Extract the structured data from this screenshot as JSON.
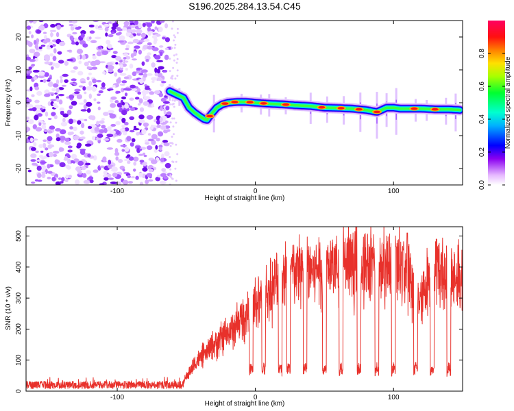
{
  "figure": {
    "title": "S196.2025.284.13.54.C45"
  },
  "chart_data": [
    {
      "type": "heatmap",
      "title": "S196.2025.284.13.54.C45",
      "xlabel": "Height of straight line (km)",
      "ylabel": "Frequency (Hz)",
      "xlim": [
        -166,
        150
      ],
      "ylim": [
        -25,
        25
      ],
      "xticks": [
        -100,
        0,
        100
      ],
      "yticks": [
        -20,
        -10,
        0,
        10,
        20
      ],
      "colorbar": {
        "label": "Normalized spectral amplitude",
        "range": [
          0,
          1
        ],
        "ticks": [
          0,
          0.2,
          0.4,
          0.6,
          0.8
        ],
        "tick_labels": [
          "0.0",
          "0.2",
          "0.4",
          "0.6",
          "0.8"
        ]
      },
      "noise_region_x": [
        -166,
        -62
      ],
      "signal_track": {
        "x": [
          -62,
          -57,
          -52,
          -48,
          -44,
          -40,
          -37,
          -35,
          -32,
          -28,
          -24,
          -20,
          -15,
          -10,
          -5,
          0,
          10,
          20,
          30,
          40,
          50,
          60,
          70,
          80,
          88,
          95,
          100,
          105,
          110,
          120,
          130,
          140,
          148
        ],
        "y": [
          3.5,
          2.5,
          1.5,
          -1.5,
          -3.0,
          -4.2,
          -5.0,
          -5.2,
          -3.5,
          -1.5,
          -0.5,
          0.0,
          0.2,
          0.3,
          0.2,
          0.0,
          -0.3,
          -0.5,
          -0.8,
          -1.0,
          -1.5,
          -1.6,
          -1.8,
          -2.2,
          -2.8,
          -1.5,
          -1.5,
          -1.8,
          -1.8,
          -1.8,
          -2.0,
          -2.0,
          -2.2
        ]
      }
    },
    {
      "type": "line",
      "xlabel": "Height of straight line (km)",
      "ylabel": "SNR (10 * v/v)",
      "xlim": [
        -166,
        150
      ],
      "ylim": [
        0,
        530
      ],
      "xticks": [
        -100,
        0,
        100
      ],
      "yticks": [
        0,
        100,
        200,
        300,
        400,
        500
      ],
      "color": "#e8312b",
      "envelope": {
        "x": [
          -166,
          -140,
          -110,
          -80,
          -62,
          -52,
          -48,
          -42,
          -36,
          -30,
          -24,
          -18,
          -12,
          -6,
          0,
          6,
          12,
          18,
          24,
          30,
          40,
          50,
          60,
          70,
          80,
          90,
          100,
          106,
          110,
          114,
          120,
          126,
          132,
          140,
          150
        ],
        "y": [
          22,
          20,
          20,
          20,
          20,
          30,
          60,
          100,
          120,
          150,
          170,
          190,
          220,
          250,
          280,
          300,
          330,
          360,
          380,
          390,
          395,
          400,
          410,
          405,
          400,
          400,
          410,
          395,
          400,
          330,
          290,
          380,
          390,
          370,
          360
        ]
      },
      "dropouts_x": [
        -3,
        6,
        18,
        24,
        36,
        50,
        62,
        75,
        88,
        100,
        116,
        128,
        140
      ],
      "dropout_level": 60,
      "peaks": [
        {
          "x": 102,
          "y": 465
        },
        {
          "x": 107,
          "y": 455
        },
        {
          "x": 110,
          "y": 510
        }
      ]
    }
  ]
}
